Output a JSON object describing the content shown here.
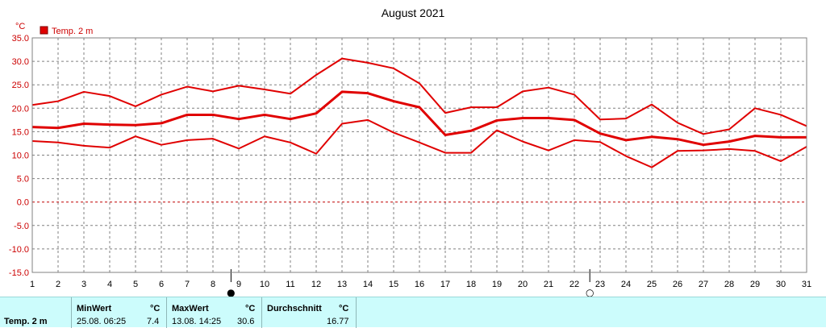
{
  "chart_data": {
    "type": "line",
    "title": "August 2021",
    "ylabel": "°C",
    "ylim": [
      -15,
      35
    ],
    "xlim": [
      1,
      31
    ],
    "grid": true,
    "legend": {
      "position": "top-left",
      "entries": [
        "Temp. 2 m"
      ]
    },
    "x": [
      1,
      2,
      3,
      4,
      5,
      6,
      7,
      8,
      9,
      10,
      11,
      12,
      13,
      14,
      15,
      16,
      17,
      18,
      19,
      20,
      21,
      22,
      23,
      24,
      25,
      26,
      27,
      28,
      29,
      30,
      31
    ],
    "x_tick_labels": [
      "1",
      "2",
      "3",
      "4",
      "5",
      "6",
      "7",
      "8",
      "9",
      "10",
      "11",
      "12",
      "13",
      "14",
      "15",
      "16",
      "17",
      "18",
      "19",
      "20",
      "21",
      "22",
      "23",
      "24",
      "25",
      "26",
      "27",
      "28",
      "29",
      "30",
      "31"
    ],
    "y_ticks": [
      35,
      30,
      25,
      20,
      15,
      10,
      5,
      0,
      -5,
      -10,
      -15
    ],
    "y_tick_labels": [
      "35.0",
      "30.0",
      "25.0",
      "20.0",
      "15.0",
      "10.0",
      "5.0",
      "0.0",
      "-5.0",
      "-10.0",
      "-15.0"
    ],
    "series": [
      {
        "name": "Temp. 2 m",
        "role": "max",
        "color": "#e00000",
        "values": [
          20.7,
          21.5,
          23.5,
          22.6,
          20.4,
          22.9,
          24.6,
          23.6,
          24.8,
          24.0,
          23.1,
          27.1,
          30.6,
          29.7,
          28.5,
          25.3,
          19.0,
          20.2,
          20.2,
          23.6,
          24.4,
          22.9,
          17.6,
          17.8,
          20.8,
          16.9,
          14.5,
          15.5,
          20.0,
          18.6,
          16.2
        ]
      },
      {
        "name": "",
        "role": "mean",
        "color": "#e00000",
        "values": [
          16.0,
          15.8,
          16.7,
          16.5,
          16.4,
          16.8,
          18.6,
          18.6,
          17.7,
          18.6,
          17.7,
          18.9,
          23.5,
          23.2,
          21.5,
          20.2,
          14.3,
          15.2,
          17.4,
          17.9,
          17.9,
          17.5,
          14.6,
          13.2,
          13.9,
          13.4,
          12.2,
          12.9,
          14.1,
          13.8,
          13.8
        ]
      },
      {
        "name": "",
        "role": "min",
        "color": "#e00000",
        "values": [
          13.0,
          12.7,
          12.0,
          11.6,
          14.0,
          12.2,
          13.2,
          13.5,
          11.4,
          14.0,
          12.7,
          10.3,
          16.7,
          17.5,
          14.8,
          12.7,
          10.5,
          10.5,
          15.3,
          12.9,
          11.0,
          13.2,
          12.8,
          9.8,
          7.4,
          10.9,
          11.0,
          11.3,
          10.9,
          8.7,
          11.8
        ]
      }
    ],
    "moon_markers": [
      {
        "position": 8.7,
        "symbol": "●"
      },
      {
        "position": 22.6,
        "symbol": "○"
      }
    ]
  },
  "colors": {
    "series": "#e00000",
    "grid": "#808080",
    "zero_line": "#c00000",
    "stats_bg": "#ccfcfc"
  },
  "stats": {
    "row_label": "Temp. 2 m",
    "min": {
      "header": "MinWert",
      "unit": "°C",
      "datetime": "25.08.  06:25",
      "value": "7.4"
    },
    "max": {
      "header": "MaxWert",
      "unit": "°C",
      "datetime": "13.08.  14:25",
      "value": "30.6"
    },
    "avg": {
      "header": "Durchschnitt",
      "unit": "°C",
      "value": "16.77"
    }
  }
}
